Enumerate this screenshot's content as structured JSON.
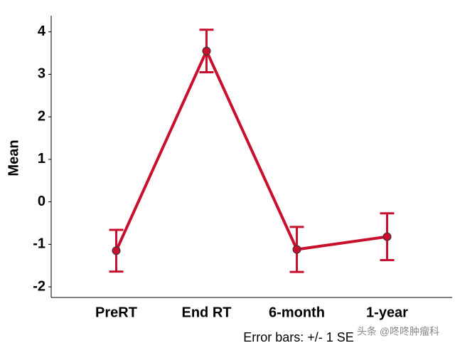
{
  "chart_data": {
    "type": "line",
    "ylabel": "Mean",
    "categories": [
      "PreRT",
      "End RT",
      "6-month",
      "1-year"
    ],
    "series": [
      {
        "color": "#c8102e",
        "values": [
          -1.15,
          3.55,
          -1.12,
          -0.82
        ],
        "errors": [
          0.49,
          0.5,
          0.53,
          0.55
        ]
      }
    ],
    "ylim": [
      -2.25,
      4.38
    ],
    "yticks": [
      -2,
      -1,
      0,
      1,
      2,
      3,
      4
    ],
    "annotation": "Error bars: +/- 1 SE",
    "watermark": "头条 @咚咚肿瘤科"
  }
}
